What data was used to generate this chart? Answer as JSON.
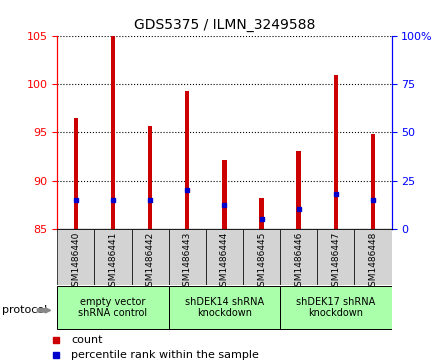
{
  "title": "GDS5375 / ILMN_3249588",
  "samples": [
    "GSM1486440",
    "GSM1486441",
    "GSM1486442",
    "GSM1486443",
    "GSM1486444",
    "GSM1486445",
    "GSM1486446",
    "GSM1486447",
    "GSM1486448"
  ],
  "count_values": [
    96.5,
    105.0,
    95.7,
    99.3,
    92.1,
    88.2,
    93.1,
    101.0,
    94.8
  ],
  "percentile_values": [
    15.0,
    15.0,
    15.0,
    20.0,
    12.5,
    5.0,
    10.0,
    18.0,
    15.0
  ],
  "ylim_left": [
    85,
    105
  ],
  "ylim_right": [
    0,
    100
  ],
  "yticks_left": [
    85,
    90,
    95,
    100,
    105
  ],
  "yticks_right": [
    0,
    25,
    50,
    75,
    100
  ],
  "ytick_labels_right": [
    "0",
    "25",
    "50",
    "75",
    "100%"
  ],
  "bar_color": "#cc0000",
  "dot_color": "#0000cc",
  "bar_bottom": 85,
  "bar_width": 0.12,
  "groups": [
    {
      "label": "empty vector\nshRNA control",
      "start": 0,
      "end": 3,
      "color": "#aaffaa"
    },
    {
      "label": "shDEK14 shRNA\nknockdown",
      "start": 3,
      "end": 6,
      "color": "#aaffaa"
    },
    {
      "label": "shDEK17 shRNA\nknockdown",
      "start": 6,
      "end": 9,
      "color": "#aaffaa"
    }
  ],
  "protocol_label": "protocol",
  "legend_items": [
    {
      "label": "count",
      "color": "#cc0000"
    },
    {
      "label": "percentile rank within the sample",
      "color": "#0000cc"
    }
  ],
  "background_color": "#ffffff",
  "plot_bg_color": "#ffffff",
  "label_area_color": "#d3d3d3"
}
